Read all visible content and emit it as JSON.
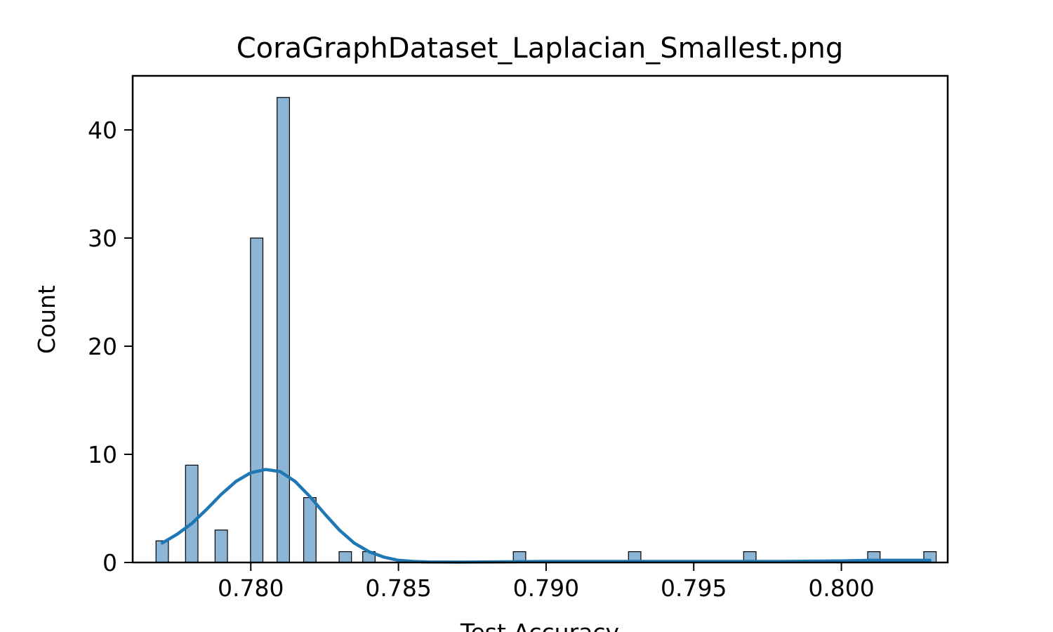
{
  "chart_data": {
    "type": "bar",
    "title": "CoraGraphDataset_Laplacian_Smallest.png",
    "xlabel": "Test Accuracy",
    "ylabel": "Count",
    "xlim": [
      0.776,
      0.8036
    ],
    "ylim": [
      0,
      45
    ],
    "grid": false,
    "legend": "none",
    "bar_width": 0.00042,
    "x_ticks": [
      0.78,
      0.785,
      0.79,
      0.795,
      0.8
    ],
    "x_tick_labels": [
      "0.780",
      "0.785",
      "0.790",
      "0.795",
      "0.800"
    ],
    "y_ticks": [
      0,
      10,
      20,
      30,
      40
    ],
    "y_tick_labels": [
      "0",
      "10",
      "20",
      "30",
      "40"
    ],
    "bars": [
      {
        "x": 0.777,
        "count": 2
      },
      {
        "x": 0.778,
        "count": 9
      },
      {
        "x": 0.779,
        "count": 3
      },
      {
        "x": 0.7802,
        "count": 30
      },
      {
        "x": 0.7811,
        "count": 43
      },
      {
        "x": 0.782,
        "count": 6
      },
      {
        "x": 0.7832,
        "count": 1
      },
      {
        "x": 0.784,
        "count": 1
      },
      {
        "x": 0.7891,
        "count": 1
      },
      {
        "x": 0.793,
        "count": 1
      },
      {
        "x": 0.7969,
        "count": 1
      },
      {
        "x": 0.8011,
        "count": 1
      },
      {
        "x": 0.803,
        "count": 1
      }
    ],
    "kde": {
      "x": [
        0.777,
        0.7775,
        0.778,
        0.7785,
        0.779,
        0.7795,
        0.78,
        0.7805,
        0.781,
        0.7815,
        0.782,
        0.7825,
        0.783,
        0.7835,
        0.784,
        0.7845,
        0.785,
        0.7855,
        0.786,
        0.787,
        0.788,
        0.79,
        0.792,
        0.794,
        0.796,
        0.798,
        0.8,
        0.801,
        0.802,
        0.803
      ],
      "y": [
        1.8,
        2.6,
        3.6,
        4.9,
        6.3,
        7.5,
        8.3,
        8.6,
        8.4,
        7.5,
        6.1,
        4.5,
        3.0,
        1.8,
        1.0,
        0.5,
        0.2,
        0.1,
        0.05,
        0.03,
        0.05,
        0.1,
        0.1,
        0.1,
        0.1,
        0.1,
        0.15,
        0.2,
        0.2,
        0.2
      ]
    },
    "colors": {
      "bar_fill": "#8db5d6",
      "bar_edge": "#000000",
      "kde_line": "#1f77b4"
    }
  }
}
